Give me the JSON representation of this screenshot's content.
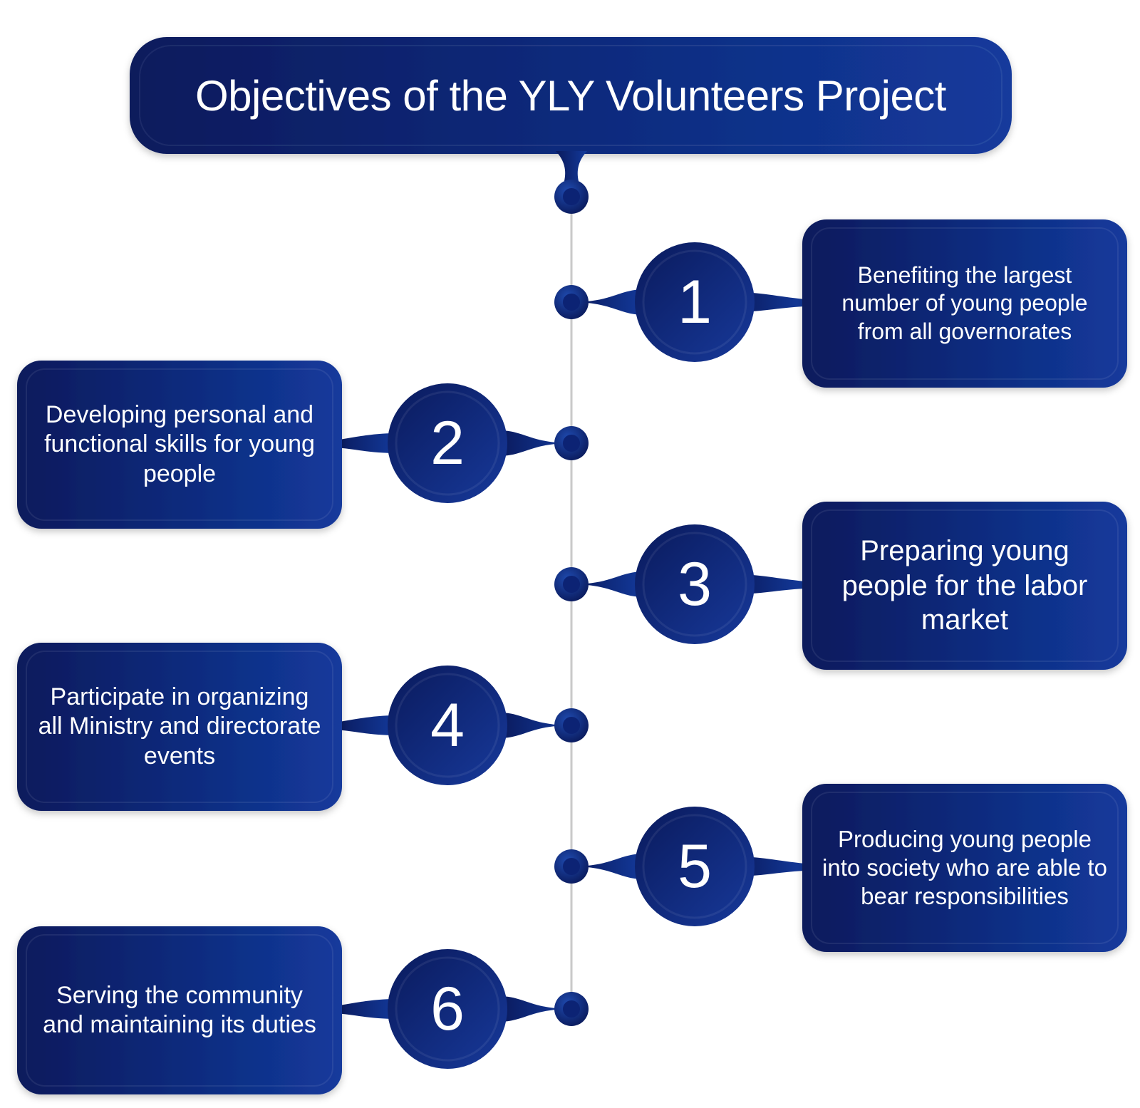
{
  "title": "Objectives of the YLY Volunteers Project",
  "colors": {
    "box_dark": "#0a1a5c",
    "box_light": "#133a9c",
    "connector_line": "#c9c9c9",
    "text": "#ffffff"
  },
  "objectives": [
    {
      "number": "1",
      "text": "Benefiting the largest number of young people from all governorates",
      "side": "right"
    },
    {
      "number": "2",
      "text": "Developing personal and functional skills for young people",
      "side": "left"
    },
    {
      "number": "3",
      "text": "Preparing young people for the labor market",
      "side": "right"
    },
    {
      "number": "4",
      "text": "Participate in organizing all Ministry and directorate events",
      "side": "left"
    },
    {
      "number": "5",
      "text": "Producing young people into society who are able to bear responsibilities",
      "side": "right"
    },
    {
      "number": "6",
      "text": "Serving the community and maintaining its duties",
      "side": "left"
    }
  ]
}
